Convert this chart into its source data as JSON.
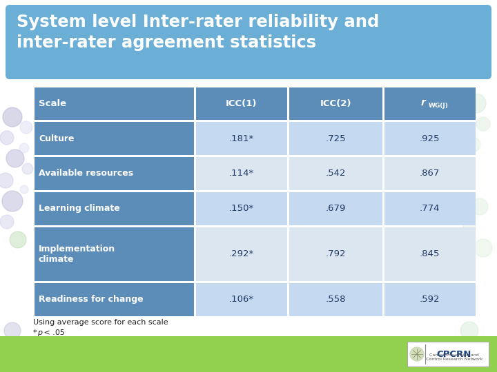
{
  "title_line1": "System level Inter-rater reliability and",
  "title_line2": "inter-rater agreement statistics",
  "title_bg_color": "#6baed6",
  "title_text_color": "#ffffff",
  "header_bg_color": "#5b8db8",
  "header_text_color": "#ffffff",
  "rows": [
    [
      "Culture",
      ".181*",
      ".725",
      ".925"
    ],
    [
      "Available resources",
      ".114*",
      ".542",
      ".867"
    ],
    [
      "Learning climate",
      ".150*",
      ".679",
      ".774"
    ],
    [
      "Implementation\nclimate",
      ".292*",
      ".792",
      ".845"
    ],
    [
      "Readiness for change",
      ".106*",
      ".558",
      ".592"
    ]
  ],
  "scale_col_bg": "#5b8db8",
  "scale_col_text": "#ffffff",
  "data_col_bg_light": "#dce6f1",
  "data_col_bg_mid": "#c5d9f1",
  "data_col_text": "#1f3864",
  "footnote_line1": "Using average score for each scale",
  "footnote_line2": "*p < .05",
  "footnote_text_color": "#1f1f1f",
  "bg_color": "#ffffff",
  "bottom_bar_color": "#92d050",
  "row_bg_colors": [
    "#c5d9f1",
    "#dce6f1",
    "#c5d9f1",
    "#dce6f1",
    "#c5d9f1"
  ]
}
